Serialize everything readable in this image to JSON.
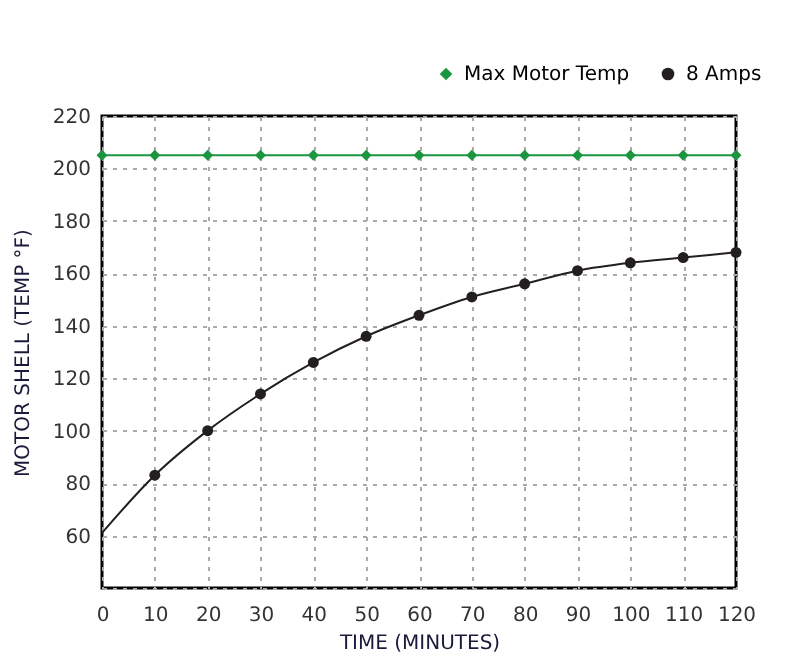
{
  "chart_data": {
    "type": "line",
    "xlabel": "TIME (MINUTES)",
    "ylabel": "MOTOR SHELL (TEMP °F)",
    "xlim": [
      0,
      120
    ],
    "xticks": [
      0,
      10,
      20,
      30,
      40,
      50,
      60,
      70,
      80,
      90,
      100,
      110,
      120
    ],
    "ylim": [
      40,
      220
    ],
    "yticks": [
      {
        "value": 40,
        "label": null
      },
      60,
      80,
      100,
      120,
      140,
      160,
      180,
      200,
      220
    ],
    "grid": true,
    "legend": "top right",
    "series": [
      {
        "name": "Max Motor Temp",
        "marker": "diamond",
        "color": "#1a9641",
        "x": [
          0,
          10,
          20,
          30,
          40,
          50,
          60,
          70,
          80,
          90,
          100,
          110,
          120
        ],
        "values": [
          205,
          205,
          205,
          205,
          205,
          205,
          205,
          205,
          205,
          205,
          205,
          205,
          205
        ]
      },
      {
        "name": "8 Amps",
        "type": "scatter",
        "marker": "circle",
        "color": "#231f20",
        "x": [
          10,
          20,
          30,
          40,
          50,
          60,
          70,
          80,
          90,
          100,
          110,
          120
        ],
        "values": [
          83,
          100,
          114,
          126,
          136,
          144,
          151,
          156,
          161,
          164,
          166,
          168
        ]
      },
      {
        "marker": "none",
        "color": "#231f20",
        "x": [
          0,
          10,
          20,
          30,
          40,
          50,
          60,
          70,
          80,
          90,
          100,
          110,
          120
        ],
        "values": [
          61,
          83,
          100,
          114,
          126,
          136,
          144,
          151,
          156,
          161,
          164,
          166,
          168
        ]
      }
    ]
  }
}
